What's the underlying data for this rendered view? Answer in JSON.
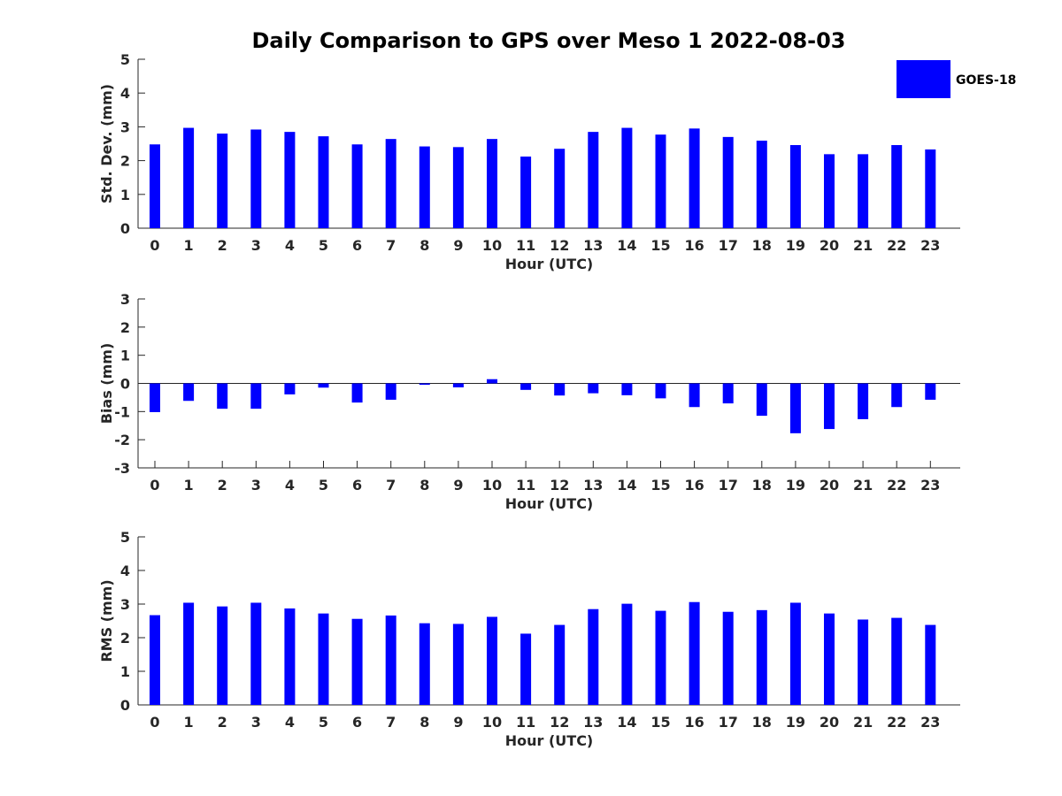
{
  "title": "Daily Comparison to GPS over Meso 1 2022-08-03",
  "legend": {
    "label": "GOES-18",
    "color": "#0000ff"
  },
  "bar_color": "#0000ff",
  "chart_data": [
    {
      "type": "bar",
      "title": "Daily Comparison to GPS over Meso 1 2022-08-03",
      "xlabel": "Hour (UTC)",
      "ylabel": "Std. Dev. (mm)",
      "ylim": [
        0,
        5
      ],
      "yticks": [
        0,
        1,
        2,
        3,
        4,
        5
      ],
      "categories": [
        "0",
        "1",
        "2",
        "3",
        "4",
        "5",
        "6",
        "7",
        "8",
        "9",
        "10",
        "11",
        "12",
        "13",
        "14",
        "15",
        "16",
        "17",
        "18",
        "19",
        "20",
        "21",
        "22",
        "23"
      ],
      "series": [
        {
          "name": "GOES-18",
          "values": [
            2.48,
            2.97,
            2.8,
            2.92,
            2.85,
            2.72,
            2.48,
            2.64,
            2.42,
            2.4,
            2.64,
            2.12,
            2.35,
            2.85,
            2.97,
            2.77,
            2.95,
            2.7,
            2.59,
            2.46,
            2.19,
            2.19,
            2.46,
            2.33
          ]
        }
      ]
    },
    {
      "type": "bar",
      "xlabel": "Hour (UTC)",
      "ylabel": "Bias (mm)",
      "ylim": [
        -3,
        3
      ],
      "yticks": [
        -3,
        -2,
        -1,
        0,
        1,
        2,
        3
      ],
      "categories": [
        "0",
        "1",
        "2",
        "3",
        "4",
        "5",
        "6",
        "7",
        "8",
        "9",
        "10",
        "11",
        "12",
        "13",
        "14",
        "15",
        "16",
        "17",
        "18",
        "19",
        "20",
        "21",
        "22",
        "23"
      ],
      "series": [
        {
          "name": "GOES-18",
          "values": [
            -1.02,
            -0.62,
            -0.9,
            -0.9,
            -0.39,
            -0.15,
            -0.68,
            -0.58,
            -0.05,
            -0.14,
            0.15,
            -0.23,
            -0.43,
            -0.35,
            -0.42,
            -0.53,
            -0.84,
            -0.71,
            -1.15,
            -1.77,
            -1.62,
            -1.27,
            -0.84,
            -0.58
          ]
        }
      ]
    },
    {
      "type": "bar",
      "xlabel": "Hour (UTC)",
      "ylabel": "RMS (mm)",
      "ylim": [
        0,
        5
      ],
      "yticks": [
        0,
        1,
        2,
        3,
        4,
        5
      ],
      "categories": [
        "0",
        "1",
        "2",
        "3",
        "4",
        "5",
        "6",
        "7",
        "8",
        "9",
        "10",
        "11",
        "12",
        "13",
        "14",
        "15",
        "16",
        "17",
        "18",
        "19",
        "20",
        "21",
        "22",
        "23"
      ],
      "series": [
        {
          "name": "GOES-18",
          "values": [
            2.67,
            3.04,
            2.93,
            3.04,
            2.87,
            2.72,
            2.56,
            2.66,
            2.43,
            2.41,
            2.62,
            2.12,
            2.38,
            2.85,
            3.01,
            2.8,
            3.06,
            2.77,
            2.82,
            3.04,
            2.72,
            2.54,
            2.59,
            2.38
          ]
        }
      ]
    }
  ]
}
